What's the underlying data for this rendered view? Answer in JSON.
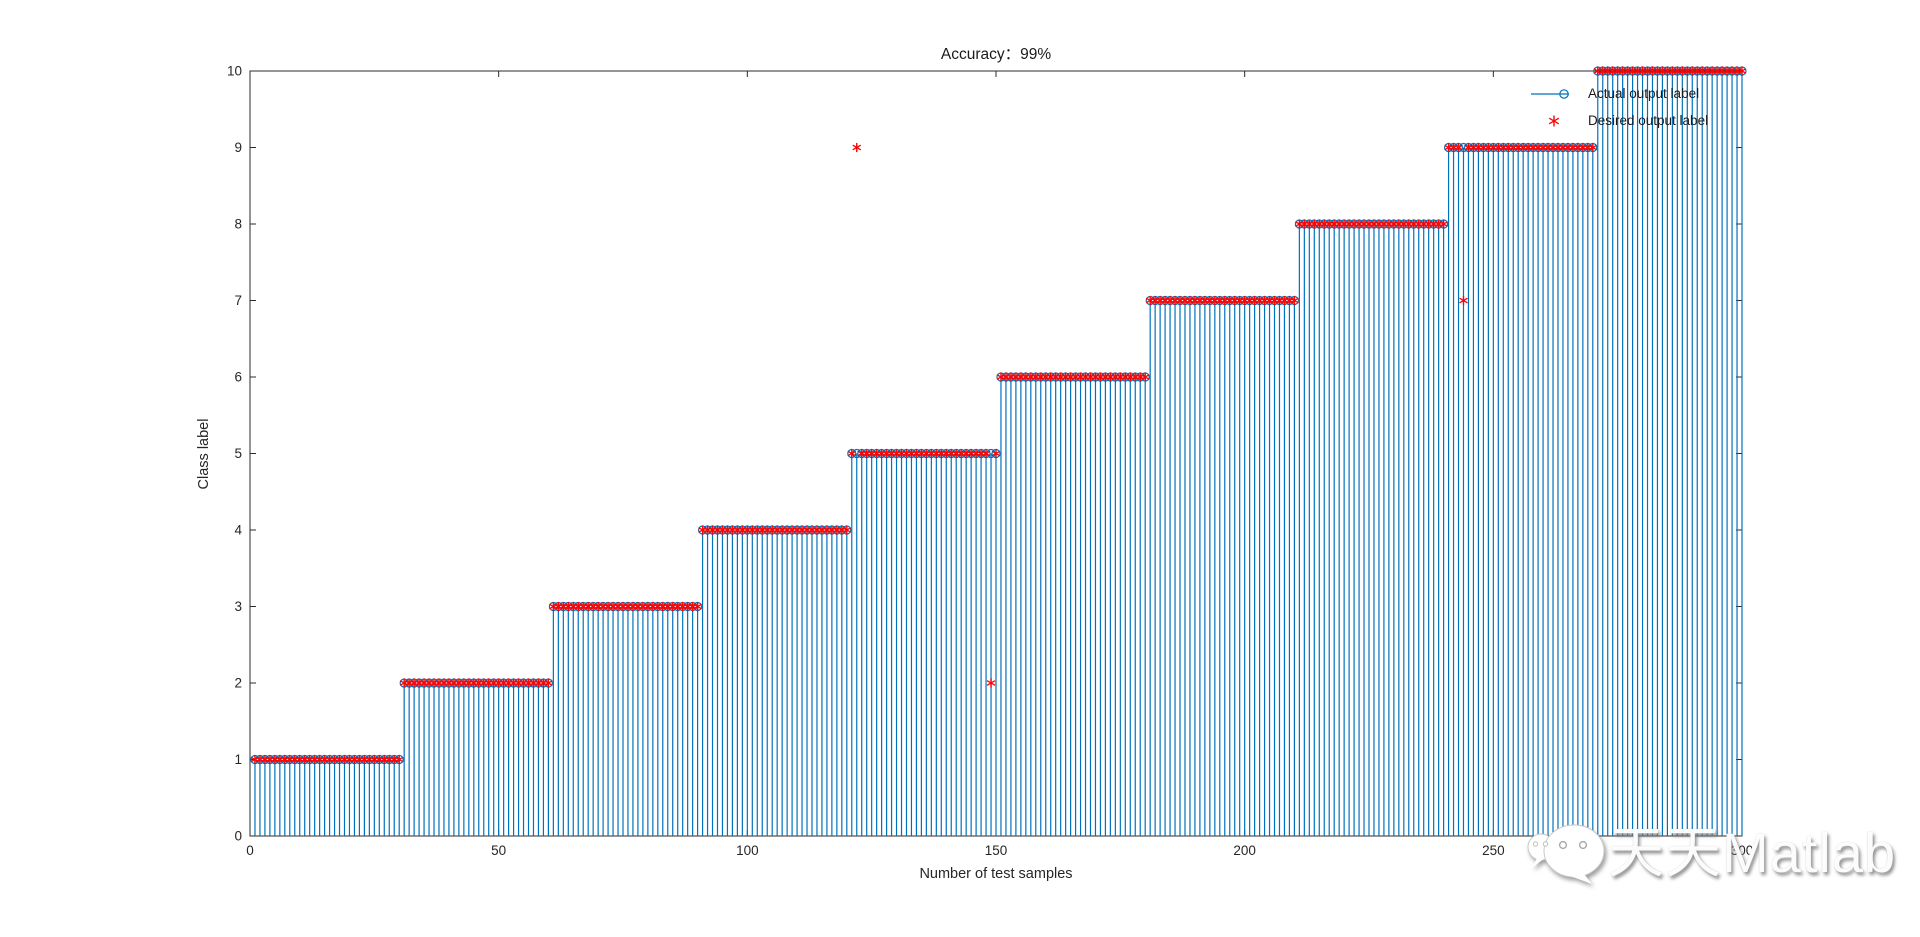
{
  "figure": {
    "background_color": "#ffffff",
    "watermark": {
      "icon": "wechat-icon",
      "text": "天天Matlab"
    }
  },
  "chart_data": {
    "type": "scatter",
    "style": "stem-staircase",
    "title": "Accuracy：99%",
    "accuracy_percent": 99,
    "xlabel": "Number of test samples",
    "ylabel": "Class label",
    "xlim": [
      0,
      300
    ],
    "ylim": [
      0,
      10
    ],
    "x_ticks": [
      0,
      50,
      100,
      150,
      200,
      250,
      300
    ],
    "y_ticks": [
      0,
      1,
      2,
      3,
      4,
      5,
      6,
      7,
      8,
      9,
      10
    ],
    "grid": false,
    "axis_color": "#2b2b2b",
    "tick_label_color": "#262626",
    "n_samples": 300,
    "samples_per_class": 30,
    "class_labels": [
      1,
      2,
      3,
      4,
      5,
      6,
      7,
      8,
      9,
      10
    ],
    "series": [
      {
        "name": "Actual output label",
        "marker": "stem-with-open-circle",
        "color": "#0072BD",
        "values_rule": "label = ceil(sample / 30) for sample 1..300 (perfect staircase)"
      },
      {
        "name": "Desired output label",
        "marker": "asterisk",
        "color": "#FA0606",
        "values_rule": "same staircase as actual except the listed mismatches",
        "mismatches": [
          {
            "sample": 122,
            "label": 9
          },
          {
            "sample": 149,
            "label": 2
          },
          {
            "sample": 244,
            "label": 7
          }
        ]
      }
    ],
    "legend": {
      "position": "top-right",
      "box": false,
      "entries": [
        {
          "label": "Actual output label"
        },
        {
          "label": "Desired output label"
        }
      ]
    }
  }
}
